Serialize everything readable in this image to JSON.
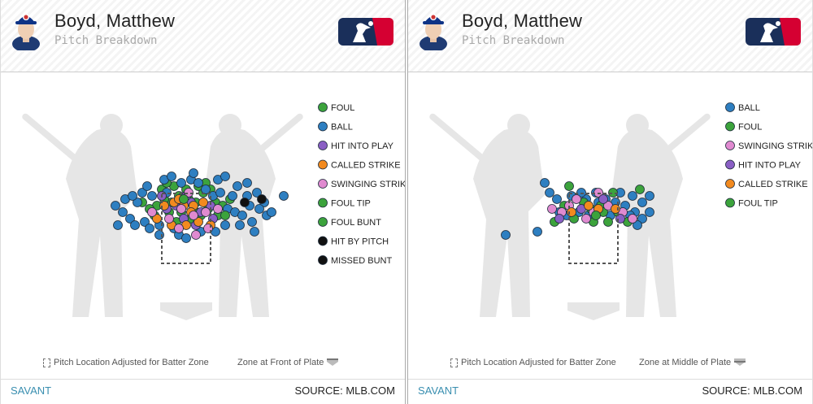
{
  "panels": [
    {
      "player_name": "Boyd, Matthew",
      "subtitle": "Pitch Breakdown",
      "footer_note_left": "Pitch Location Adjusted for Batter Zone",
      "footer_note_right": "Zone at Front of Plate",
      "brand": "SAVANT",
      "source": "SOURCE: MLB.COM"
    },
    {
      "player_name": "Boyd, Matthew",
      "subtitle": "Pitch Breakdown",
      "footer_note_left": "Pitch Location Adjusted for Batter Zone",
      "footer_note_right": "Zone at Middle of Plate",
      "brand": "SAVANT",
      "source": "SOURCE: MLB.COM"
    }
  ],
  "colors": {
    "foul": "#3ca33c",
    "ball": "#2e7fc1",
    "hit_into_play": "#8a5fc4",
    "called_strike": "#f28a1f",
    "swinging_strike": "#e08ad0",
    "foul_tip": "#3ca33c",
    "foul_bunt": "#3ca33c",
    "hit_by_pitch": "#111111",
    "missed_bunt": "#111111"
  },
  "chart_data": [
    {
      "type": "scatter",
      "title": "Pitch Breakdown",
      "zone_reference": "Zone at Front of Plate",
      "legend_position": "right",
      "legend": [
        {
          "label": "FOUL",
          "color": "#3ca33c"
        },
        {
          "label": "BALL",
          "color": "#2e7fc1"
        },
        {
          "label": "HIT INTO PLAY",
          "color": "#8a5fc4"
        },
        {
          "label": "CALLED STRIKE",
          "color": "#f28a1f"
        },
        {
          "label": "SWINGING STRIKE",
          "color": "#e08ad0"
        },
        {
          "label": "FOUL TIP",
          "color": "#3ca33c"
        },
        {
          "label": "FOUL BUNT",
          "color": "#3ca33c"
        },
        {
          "label": "HIT BY PITCH",
          "color": "#111111"
        },
        {
          "label": "MISSED BUNT",
          "color": "#111111"
        }
      ],
      "points": {
        "FOUL": [
          [
            -0.6,
            3.3
          ],
          [
            -0.3,
            3.5
          ],
          [
            0.1,
            3.4
          ],
          [
            0.4,
            3.3
          ],
          [
            0.7,
            3.6
          ],
          [
            -1.2,
            3.2
          ],
          [
            -0.9,
            3.4
          ],
          [
            0.9,
            3.1
          ],
          [
            1.2,
            3.3
          ],
          [
            -0.2,
            3.0
          ],
          [
            0.3,
            3.1
          ],
          [
            -0.7,
            3.0
          ],
          [
            0.6,
            2.9
          ],
          [
            -1.5,
            3.1
          ],
          [
            1.5,
            3.2
          ],
          [
            0.0,
            3.7
          ],
          [
            -0.5,
            3.8
          ],
          [
            0.5,
            3.8
          ],
          [
            1.0,
            3.7
          ],
          [
            -1.0,
            3.7
          ],
          [
            0.2,
            2.8
          ],
          [
            -0.4,
            2.7
          ],
          [
            1.3,
            2.9
          ],
          [
            -1.3,
            2.9
          ],
          [
            0.8,
            3.9
          ],
          [
            -0.8,
            3.9
          ],
          [
            1.8,
            3.4
          ],
          [
            -1.8,
            3.3
          ]
        ],
        "BALL": [
          [
            -2.6,
            3.0
          ],
          [
            -2.3,
            2.8
          ],
          [
            -2.0,
            3.3
          ],
          [
            -1.7,
            2.7
          ],
          [
            -1.4,
            3.5
          ],
          [
            -1.1,
            2.6
          ],
          [
            -0.8,
            3.6
          ],
          [
            -0.5,
            2.5
          ],
          [
            -0.2,
            3.9
          ],
          [
            0.2,
            4.0
          ],
          [
            0.5,
            3.9
          ],
          [
            0.8,
            3.7
          ],
          [
            1.1,
            3.5
          ],
          [
            1.4,
            3.6
          ],
          [
            1.7,
            3.1
          ],
          [
            2.0,
            3.0
          ],
          [
            2.3,
            2.9
          ],
          [
            2.6,
            3.2
          ],
          [
            2.9,
            3.6
          ],
          [
            3.2,
            3.3
          ],
          [
            -2.8,
            2.6
          ],
          [
            -2.5,
            3.4
          ],
          [
            -2.1,
            2.6
          ],
          [
            -1.8,
            3.6
          ],
          [
            -1.5,
            2.5
          ],
          [
            1.6,
            2.6
          ],
          [
            1.9,
            3.5
          ],
          [
            2.2,
            2.6
          ],
          [
            2.5,
            3.5
          ],
          [
            2.7,
            2.7
          ],
          [
            3.0,
            3.1
          ],
          [
            -0.9,
            4.0
          ],
          [
            1.3,
            4.0
          ],
          [
            2.1,
            3.8
          ],
          [
            2.5,
            3.9
          ],
          [
            -1.6,
            3.8
          ],
          [
            -2.2,
            3.5
          ],
          [
            3.3,
            2.9
          ],
          [
            -0.3,
            2.3
          ],
          [
            0.6,
            2.4
          ],
          [
            1.2,
            2.4
          ],
          [
            -1.1,
            2.3
          ],
          [
            0.0,
            2.2
          ],
          [
            -2.9,
            3.2
          ],
          [
            2.8,
            2.4
          ],
          [
            3.5,
            3.0
          ],
          [
            4.0,
            3.5
          ],
          [
            -0.6,
            4.1
          ],
          [
            0.3,
            4.2
          ],
          [
            1.6,
            4.1
          ]
        ],
        "HIT INTO PLAY": [
          [
            -0.4,
            3.2
          ],
          [
            0.2,
            3.3
          ],
          [
            0.6,
            3.0
          ],
          [
            -0.8,
            3.1
          ],
          [
            1.0,
            3.2
          ],
          [
            0.0,
            3.5
          ],
          [
            -1.0,
            3.5
          ],
          [
            1.1,
            2.8
          ],
          [
            0.4,
            2.6
          ],
          [
            -0.1,
            2.8
          ]
        ],
        "CALLED STRIKE": [
          [
            -0.9,
            3.2
          ],
          [
            -0.5,
            3.3
          ],
          [
            -0.1,
            3.2
          ],
          [
            0.3,
            3.2
          ],
          [
            0.7,
            3.3
          ],
          [
            -1.2,
            2.8
          ],
          [
            -0.6,
            2.6
          ],
          [
            0.0,
            2.6
          ],
          [
            0.5,
            2.7
          ],
          [
            1.0,
            2.6
          ],
          [
            -0.3,
            3.4
          ],
          [
            0.2,
            3.0
          ]
        ],
        "SWINGING STRIKE": [
          [
            -0.2,
            3.1
          ],
          [
            0.3,
            2.9
          ],
          [
            0.8,
            3.0
          ],
          [
            -0.7,
            2.8
          ],
          [
            1.3,
            3.1
          ],
          [
            -0.3,
            2.5
          ],
          [
            0.4,
            2.3
          ],
          [
            0.9,
            2.5
          ],
          [
            -1.4,
            3.0
          ],
          [
            0.1,
            3.6
          ]
        ],
        "FOUL TIP": [
          [
            -0.1,
            3.4
          ]
        ],
        "FOUL BUNT": [
          [
            1.6,
            2.9
          ]
        ],
        "HIT BY PITCH": [
          [
            3.1,
            3.4
          ]
        ],
        "MISSED BUNT": [
          [
            2.4,
            3.3
          ]
        ]
      }
    },
    {
      "type": "scatter",
      "title": "Pitch Breakdown",
      "zone_reference": "Zone at Middle of Plate",
      "legend_position": "right",
      "legend": [
        {
          "label": "BALL",
          "color": "#2e7fc1"
        },
        {
          "label": "FOUL",
          "color": "#3ca33c"
        },
        {
          "label": "SWINGING STRIKE",
          "color": "#e08ad0"
        },
        {
          "label": "HIT INTO PLAY",
          "color": "#8a5fc4"
        },
        {
          "label": "CALLED STRIKE",
          "color": "#f28a1f"
        },
        {
          "label": "FOUL TIP",
          "color": "#3ca33c"
        }
      ],
      "points": {
        "BALL": [
          [
            -1.8,
            3.6
          ],
          [
            -1.4,
            3.0
          ],
          [
            -0.9,
            3.5
          ],
          [
            -0.6,
            3.0
          ],
          [
            -0.3,
            3.4
          ],
          [
            0.1,
            3.6
          ],
          [
            0.5,
            3.4
          ],
          [
            0.9,
            3.3
          ],
          [
            1.3,
            3.2
          ],
          [
            1.7,
            3.0
          ],
          [
            2.0,
            3.3
          ],
          [
            2.3,
            3.0
          ],
          [
            -1.5,
            3.4
          ],
          [
            1.1,
            3.6
          ],
          [
            1.6,
            3.5
          ],
          [
            -0.2,
            2.9
          ],
          [
            0.7,
            2.9
          ],
          [
            -1.1,
            2.9
          ],
          [
            2.0,
            2.8
          ],
          [
            -3.6,
            2.3
          ],
          [
            -2.3,
            2.4
          ],
          [
            -2.0,
            3.9
          ],
          [
            1.8,
            2.6
          ],
          [
            0.2,
            3.3
          ],
          [
            -0.5,
            3.6
          ],
          [
            1.5,
            2.9
          ],
          [
            2.3,
            3.5
          ]
        ],
        "FOUL": [
          [
            -1.2,
            3.2
          ],
          [
            -0.4,
            3.3
          ],
          [
            0.3,
            3.2
          ],
          [
            1.0,
            3.0
          ],
          [
            -0.8,
            2.8
          ],
          [
            0.0,
            2.7
          ],
          [
            0.6,
            2.7
          ],
          [
            -1.6,
            2.7
          ],
          [
            1.4,
            2.7
          ],
          [
            0.4,
            3.0
          ],
          [
            -0.1,
            3.1
          ],
          [
            0.8,
            3.6
          ],
          [
            -1.0,
            3.8
          ],
          [
            1.9,
            3.7
          ]
        ],
        "SWINGING STRIKE": [
          [
            -1.3,
            3.0
          ],
          [
            -0.7,
            3.4
          ],
          [
            0.0,
            3.0
          ],
          [
            0.6,
            3.2
          ],
          [
            -1.0,
            3.2
          ],
          [
            1.2,
            3.0
          ],
          [
            -0.3,
            2.8
          ],
          [
            0.2,
            3.6
          ],
          [
            -1.7,
            3.1
          ],
          [
            1.6,
            2.8
          ]
        ],
        "HIT INTO PLAY": [
          [
            -0.5,
            3.1
          ],
          [
            0.4,
            3.4
          ],
          [
            1.1,
            2.8
          ],
          [
            -1.4,
            2.8
          ]
        ],
        "CALLED STRIKE": [
          [
            -0.2,
            3.2
          ],
          [
            0.2,
            3.1
          ],
          [
            -0.9,
            3.0
          ],
          [
            0.9,
            3.1
          ]
        ],
        "FOUL TIP": [
          [
            0.1,
            2.9
          ]
        ]
      }
    }
  ]
}
